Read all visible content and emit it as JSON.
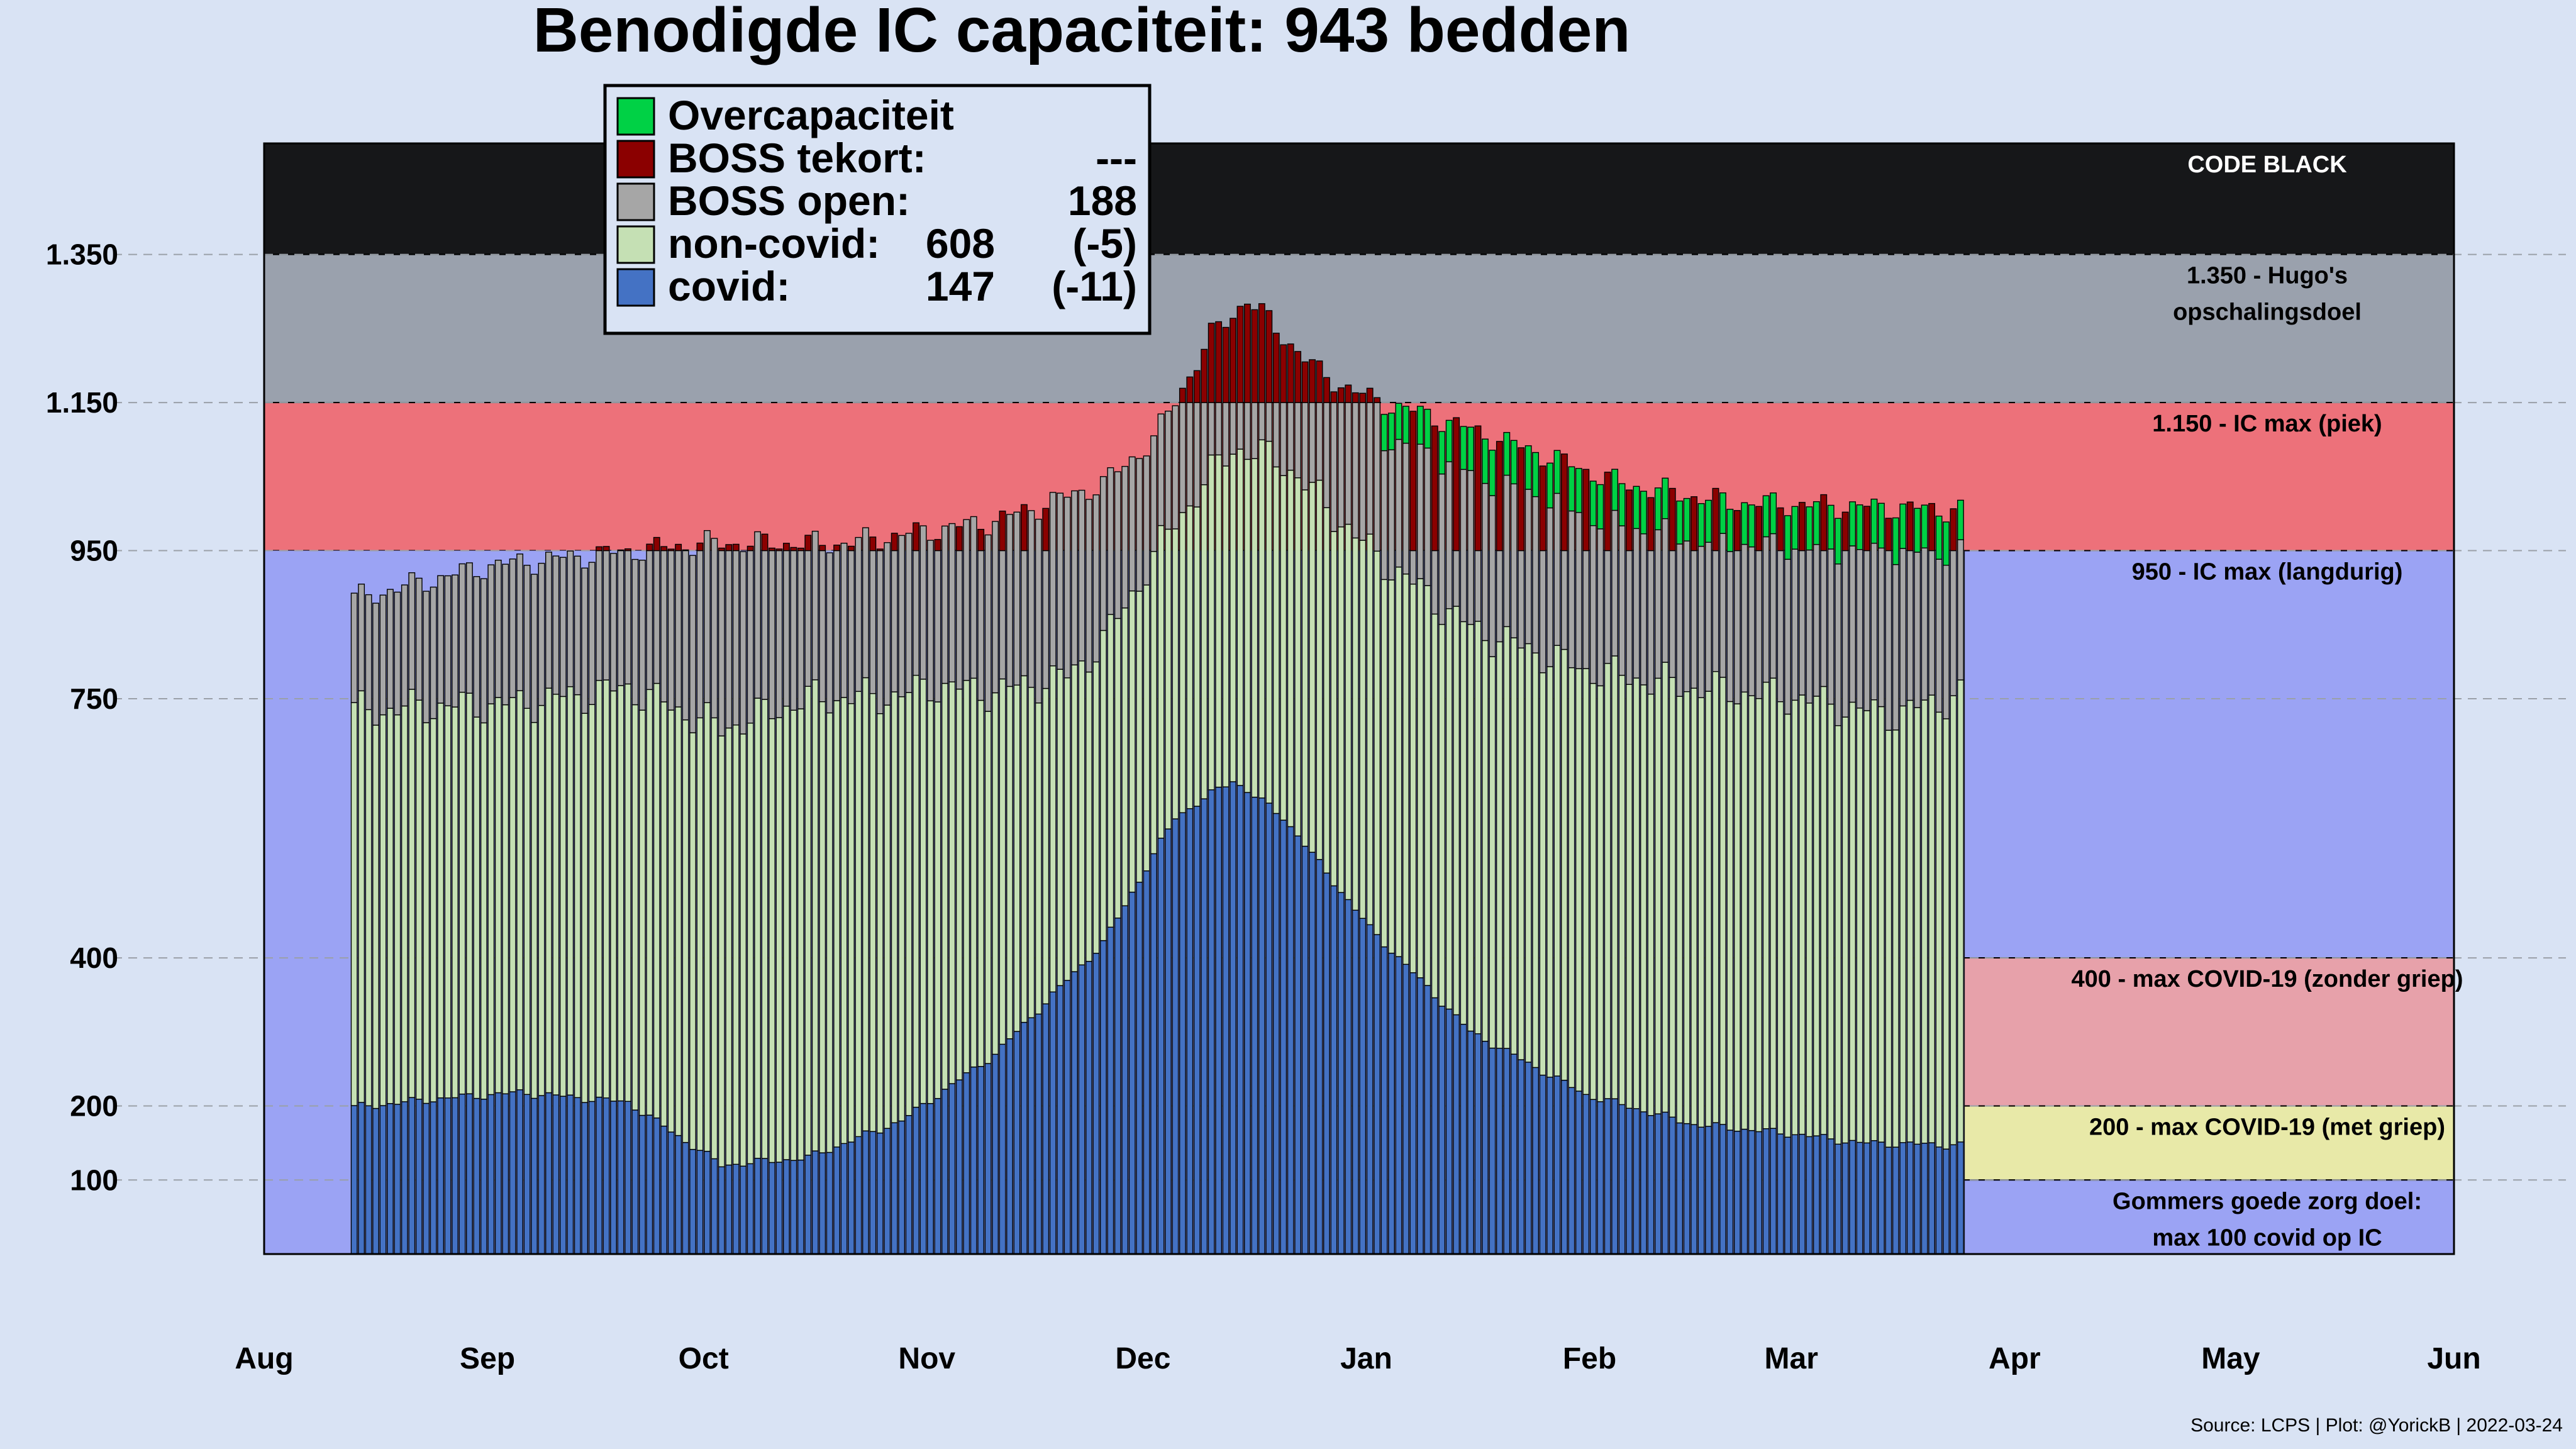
{
  "chart_data": {
    "type": "bar",
    "title": "Benodigde IC capaciteit: 943 bedden",
    "xlabel": "",
    "ylabel": "",
    "ylim": [
      0,
      1500
    ],
    "grid": "horizontal dashed",
    "legend_position": "top-left (inside plot)",
    "y_ticks": [
      {
        "value": 100,
        "label": "100"
      },
      {
        "value": 200,
        "label": "200"
      },
      {
        "value": 400,
        "label": "400"
      },
      {
        "value": 750,
        "label": "750"
      },
      {
        "value": 950,
        "label": "950"
      },
      {
        "value": 1150,
        "label": "1.150"
      },
      {
        "value": 1350,
        "label": "1.350"
      }
    ],
    "x_ticks": [
      "Aug",
      "Sep",
      "Oct",
      "Nov",
      "Dec",
      "Jan",
      "Feb",
      "Mar",
      "Apr",
      "May",
      "Jun"
    ],
    "x_start": "2021-08-01",
    "x_end": "2022-06-01",
    "data_start": "2021-08-13",
    "data_end": "2022-03-24",
    "series": [
      {
        "name": "covid",
        "color": "#4472c4"
      },
      {
        "name": "non-covid",
        "color": "#c5e0b4"
      },
      {
        "name": "BOSS open",
        "color": "#a6a6a6"
      },
      {
        "name": "BOSS tekort",
        "color": "#8b0000"
      },
      {
        "name": "Overcapaciteit",
        "color": "#00d145"
      }
    ],
    "covid_keypoints": [
      [
        "2021-08-13",
        198
      ],
      [
        "2021-08-25",
        210
      ],
      [
        "2021-09-05",
        218
      ],
      [
        "2021-09-20",
        205
      ],
      [
        "2021-10-03",
        120
      ],
      [
        "2021-10-15",
        130
      ],
      [
        "2021-10-28",
        180
      ],
      [
        "2021-11-10",
        270
      ],
      [
        "2021-11-25",
        420
      ],
      [
        "2021-12-05",
        590
      ],
      [
        "2021-12-13",
        640
      ],
      [
        "2021-12-20",
        590
      ],
      [
        "2022-01-01",
        440
      ],
      [
        "2022-01-15",
        300
      ],
      [
        "2022-01-31",
        215
      ],
      [
        "2022-02-15",
        175
      ],
      [
        "2022-03-01",
        162
      ],
      [
        "2022-03-10",
        150
      ],
      [
        "2022-03-24",
        147
      ]
    ],
    "noncovid_keypoints": [
      [
        "2021-08-13",
        535
      ],
      [
        "2021-09-05",
        525
      ],
      [
        "2021-10-01",
        585
      ],
      [
        "2021-10-15",
        620
      ],
      [
        "2021-11-01",
        560
      ],
      [
        "2021-11-20",
        410
      ],
      [
        "2021-12-05",
        400
      ],
      [
        "2021-12-13",
        450
      ],
      [
        "2021-12-20",
        480
      ],
      [
        "2022-01-01",
        510
      ],
      [
        "2022-01-15",
        545
      ],
      [
        "2022-02-01",
        575
      ],
      [
        "2022-02-15",
        590
      ],
      [
        "2022-03-01",
        590
      ],
      [
        "2022-03-15",
        580
      ],
      [
        "2022-03-24",
        608
      ]
    ],
    "top_keypoints": [
      [
        "2021-08-13",
        885
      ],
      [
        "2021-09-01",
        930
      ],
      [
        "2021-10-01",
        960
      ],
      [
        "2021-10-20",
        960
      ],
      [
        "2021-11-10",
        990
      ],
      [
        "2021-11-25",
        1040
      ],
      [
        "2021-12-02",
        1100
      ],
      [
        "2021-12-10",
        1240
      ],
      [
        "2021-12-15",
        1290
      ],
      [
        "2021-12-25",
        1190
      ],
      [
        "2022-01-01",
        1155
      ],
      [
        "2022-01-10",
        1130
      ],
      [
        "2022-01-25",
        1080
      ],
      [
        "2022-02-05",
        1040
      ],
      [
        "2022-02-20",
        1015
      ],
      [
        "2022-03-24",
        1005
      ]
    ],
    "bands": [
      {
        "from": 1350,
        "to": 1500,
        "color": "#161719",
        "label_lines": [
          "CODE BLACK"
        ],
        "label_color": "#ffffff"
      },
      {
        "from": 1150,
        "to": 1350,
        "color": "#9aa1ad",
        "label_lines": [
          "1.350 - Hugo's",
          "opschalingsdoel"
        ],
        "label_color": "#000000"
      },
      {
        "from": 950,
        "to": 1150,
        "color": "#ed717a",
        "label_lines": [
          "1.150 - IC max (piek)"
        ],
        "label_color": "#000000"
      },
      {
        "from": 400,
        "to": 950,
        "color": "#9ba3f4",
        "label_lines": [
          "950 - IC max (langdurig)"
        ],
        "label_color": "#000000"
      },
      {
        "from": 200,
        "to": 400,
        "color": "#e7a1aa",
        "label_lines": [
          "400 - max COVID-19 (zonder griep)"
        ],
        "label_color": "#000000"
      },
      {
        "from": 100,
        "to": 200,
        "color": "#e8e9a8",
        "label_lines": [
          "200 - max COVID-19 (met griep)"
        ],
        "label_color": "#000000"
      },
      {
        "from": 0,
        "to": 100,
        "color": "#9ba3f4",
        "label_lines": [
          "Gommers goede zorg doel:",
          "max 100 covid op IC"
        ],
        "label_color": "#000000"
      }
    ],
    "legend": [
      {
        "label": "Overcapaciteit",
        "value": "",
        "delta": "",
        "color": "#00d145"
      },
      {
        "label": "BOSS tekort:",
        "value": "---",
        "delta": "",
        "color": "#8b0000"
      },
      {
        "label": "BOSS open:",
        "value": "188",
        "delta": "",
        "color": "#a6a6a6"
      },
      {
        "label": "non-covid:",
        "value": "608",
        "delta": "(-5)",
        "color": "#c5e0b4"
      },
      {
        "label": "covid:",
        "value": "147",
        "delta": "(-11)",
        "color": "#4472c4"
      }
    ],
    "source": "Source: LCPS | Plot: @YorickB |  2022-03-24"
  }
}
